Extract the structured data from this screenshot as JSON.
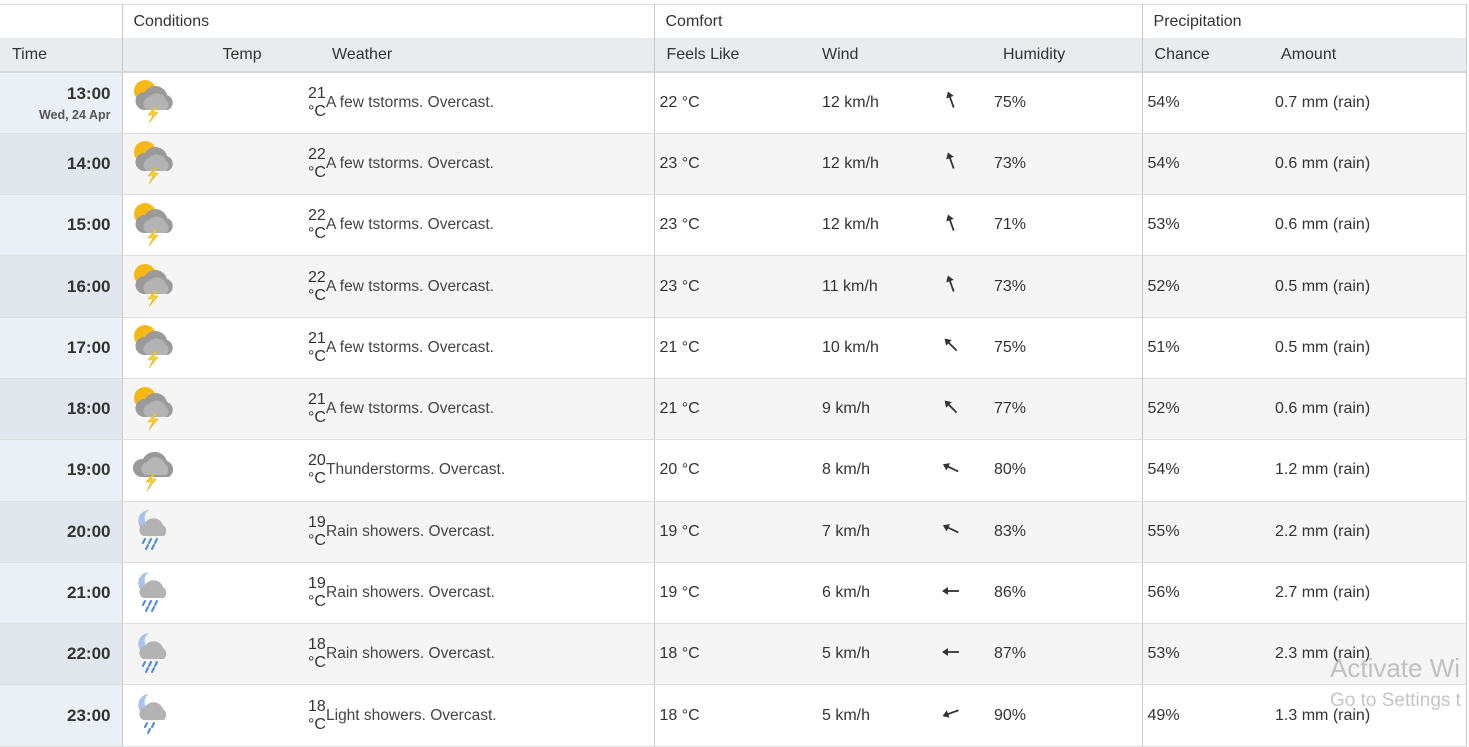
{
  "groups": {
    "conditions": "Conditions",
    "comfort": "Comfort",
    "precipitation": "Precipitation"
  },
  "columns": {
    "time": "Time",
    "temp": "Temp",
    "weather": "Weather",
    "feels_like": "Feels Like",
    "wind": "Wind",
    "humidity": "Humidity",
    "chance": "Chance",
    "amount": "Amount"
  },
  "rows": [
    {
      "time": "13:00",
      "date": "Wed, 24 Apr",
      "icon": "partly-sunny-thunderstorm-icon",
      "temp": "21 °C",
      "weather": "A few tstorms. Overcast.",
      "feels": "22 °C",
      "wind": "12 km/h",
      "wind_dir_deg": 340,
      "humidity": "75%",
      "chance": "54%",
      "amount": "0.7 mm (rain)"
    },
    {
      "time": "14:00",
      "date": "",
      "icon": "partly-sunny-thunderstorm-icon",
      "temp": "22 °C",
      "weather": "A few tstorms. Overcast.",
      "feels": "23 °C",
      "wind": "12 km/h",
      "wind_dir_deg": 340,
      "humidity": "73%",
      "chance": "54%",
      "amount": "0.6 mm (rain)"
    },
    {
      "time": "15:00",
      "date": "",
      "icon": "partly-sunny-thunderstorm-icon",
      "temp": "22 °C",
      "weather": "A few tstorms. Overcast.",
      "feels": "23 °C",
      "wind": "12 km/h",
      "wind_dir_deg": 340,
      "humidity": "71%",
      "chance": "53%",
      "amount": "0.6 mm (rain)"
    },
    {
      "time": "16:00",
      "date": "",
      "icon": "partly-sunny-thunderstorm-icon",
      "temp": "22 °C",
      "weather": "A few tstorms. Overcast.",
      "feels": "23 °C",
      "wind": "11 km/h",
      "wind_dir_deg": 340,
      "humidity": "73%",
      "chance": "52%",
      "amount": "0.5 mm (rain)"
    },
    {
      "time": "17:00",
      "date": "",
      "icon": "partly-sunny-thunderstorm-icon",
      "temp": "21 °C",
      "weather": "A few tstorms. Overcast.",
      "feels": "21 °C",
      "wind": "10 km/h",
      "wind_dir_deg": 315,
      "humidity": "75%",
      "chance": "51%",
      "amount": "0.5 mm (rain)"
    },
    {
      "time": "18:00",
      "date": "",
      "icon": "partly-sunny-thunderstorm-icon",
      "temp": "21 °C",
      "weather": "A few tstorms. Overcast.",
      "feels": "21 °C",
      "wind": "9 km/h",
      "wind_dir_deg": 315,
      "humidity": "77%",
      "chance": "52%",
      "amount": "0.6 mm (rain)"
    },
    {
      "time": "19:00",
      "date": "",
      "icon": "thunderstorm-icon",
      "temp": "20 °C",
      "weather": "Thunderstorms. Overcast.",
      "feels": "20 °C",
      "wind": "8 km/h",
      "wind_dir_deg": 295,
      "humidity": "80%",
      "chance": "54%",
      "amount": "1.2 mm (rain)"
    },
    {
      "time": "20:00",
      "date": "",
      "icon": "night-rain-showers-icon",
      "temp": "19 °C",
      "weather": "Rain showers. Overcast.",
      "feels": "19 °C",
      "wind": "7 km/h",
      "wind_dir_deg": 295,
      "humidity": "83%",
      "chance": "55%",
      "amount": "2.2 mm (rain)"
    },
    {
      "time": "21:00",
      "date": "",
      "icon": "night-rain-showers-icon",
      "temp": "19 °C",
      "weather": "Rain showers. Overcast.",
      "feels": "19 °C",
      "wind": "6 km/h",
      "wind_dir_deg": 270,
      "humidity": "86%",
      "chance": "56%",
      "amount": "2.7 mm (rain)"
    },
    {
      "time": "22:00",
      "date": "",
      "icon": "night-rain-showers-icon",
      "temp": "18 °C",
      "weather": "Rain showers. Overcast.",
      "feels": "18 °C",
      "wind": "5 km/h",
      "wind_dir_deg": 270,
      "humidity": "87%",
      "chance": "53%",
      "amount": "2.3 mm (rain)"
    },
    {
      "time": "23:00",
      "date": "",
      "icon": "night-light-showers-icon",
      "temp": "18 °C",
      "weather": "Light showers. Overcast.",
      "feels": "18 °C",
      "wind": "5 km/h",
      "wind_dir_deg": 250,
      "humidity": "90%",
      "chance": "49%",
      "amount": "1.3 mm (rain)"
    }
  ],
  "watermark": {
    "line1": "Activate Wi",
    "line2": "Go to Settings t"
  }
}
